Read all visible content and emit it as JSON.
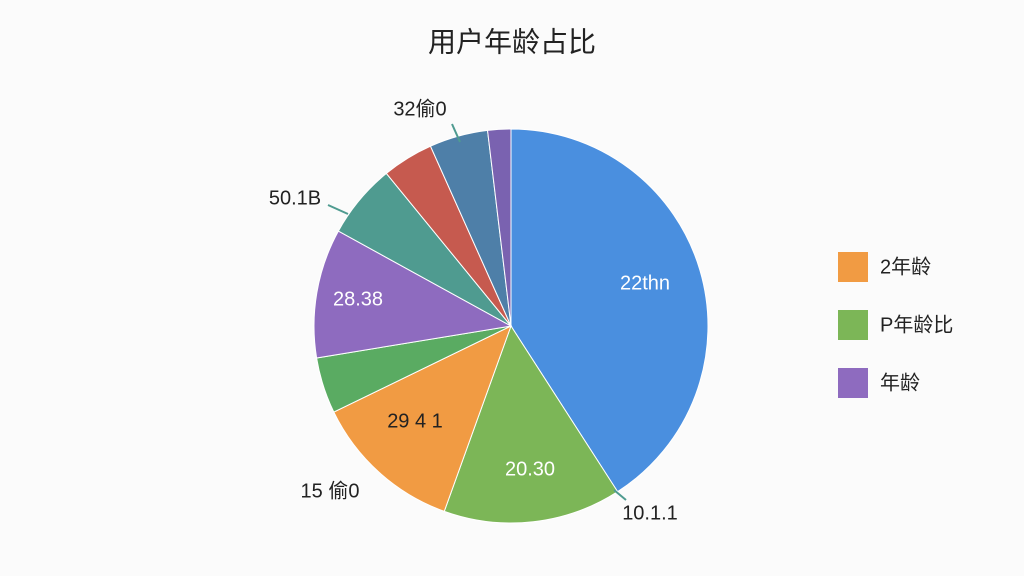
{
  "chart_data": {
    "type": "pie",
    "title": "用户年龄占比",
    "categories": [
      null,
      null,
      null,
      null,
      null,
      null,
      null,
      null,
      null
    ],
    "values": [
      40.9,
      14.6,
      12.3,
      4.6,
      10.6,
      6.1,
      4.2,
      4.8,
      1.9
    ],
    "colors": [
      "#4a8fdf",
      "#7cb657",
      "#f19b43",
      "#5aab62",
      "#8e6bbf",
      "#4f9b90",
      "#c65a4f",
      "#4e7fa8",
      "#7a62b0"
    ],
    "annotations": [
      "22thn",
      "20.30",
      "29 4 1",
      "28.38",
      "50.1B",
      "32偷0",
      "15 偷0",
      "10.1.1"
    ],
    "legend": [
      {
        "label": "2年龄",
        "color": "#f19b43"
      },
      {
        "label": "P年龄比",
        "color": "#7cb657"
      },
      {
        "label": "年龄",
        "color": "#8e6bbf"
      }
    ]
  }
}
